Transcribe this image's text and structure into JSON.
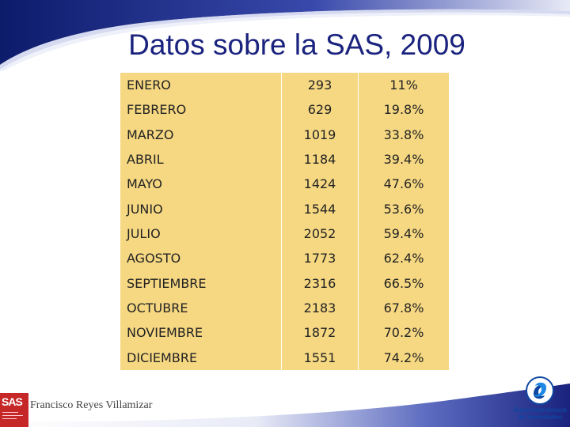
{
  "slide": {
    "title": "Datos sobre la SAS, 2009",
    "author": "Francisco Reyes Villamizar",
    "logos": {
      "left": {
        "text": "SAS",
        "icon": "sas-logo"
      },
      "right": {
        "name_line1": "Superintendencia",
        "name_line2": "de Sociedades",
        "icon": "superintendencia-emblem"
      }
    }
  },
  "table": {
    "rows": [
      {
        "month": "ENERO",
        "value": "293",
        "pct": "11%"
      },
      {
        "month": "FEBRERO",
        "value": "629",
        "pct": "19.8%"
      },
      {
        "month": "MARZO",
        "value": "1019",
        "pct": "33.8%"
      },
      {
        "month": "ABRIL",
        "value": "1184",
        "pct": "39.4%"
      },
      {
        "month": "MAYO",
        "value": "1424",
        "pct": "47.6%"
      },
      {
        "month": "JUNIO",
        "value": "1544",
        "pct": "53.6%"
      },
      {
        "month": "JULIO",
        "value": "2052",
        "pct": "59.4%"
      },
      {
        "month": "AGOSTO",
        "value": "1773",
        "pct": "62.4%"
      },
      {
        "month": "SEPTIEMBRE",
        "value": "2316",
        "pct": "66.5%"
      },
      {
        "month": "OCTUBRE",
        "value": "2183",
        "pct": "67.8%"
      },
      {
        "month": "NOVIEMBRE",
        "value": "1872",
        "pct": "70.2%"
      },
      {
        "month": "DICIEMBRE",
        "value": "1551",
        "pct": "74.2%"
      }
    ]
  },
  "colors": {
    "title": "#1a237e",
    "table_bg": "#f6d882",
    "header_band": "#1a237e",
    "logo_red": "#c62828"
  }
}
